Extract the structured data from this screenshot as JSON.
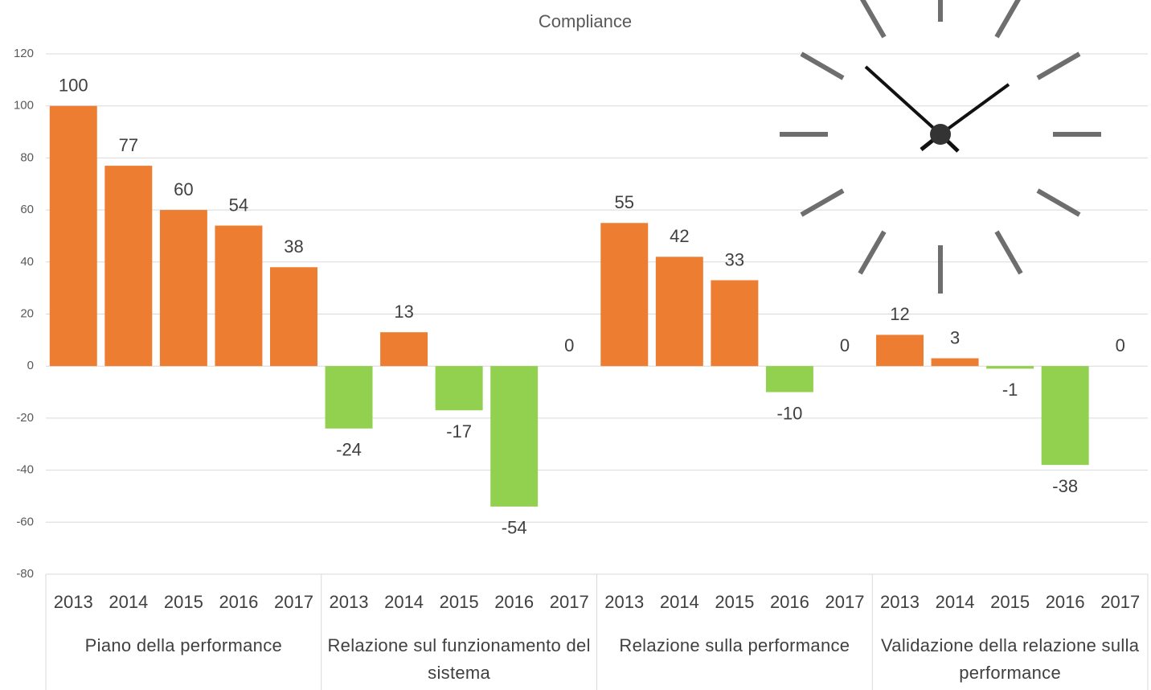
{
  "chart_data": {
    "type": "bar",
    "title": "Compliance",
    "categories": [
      "2013",
      "2014",
      "2015",
      "2016",
      "2017",
      "2013",
      "2014",
      "2015",
      "2016",
      "2017",
      "2013",
      "2014",
      "2015",
      "2016",
      "2017",
      "2013",
      "2014",
      "2015",
      "2016",
      "2017"
    ],
    "groups": [
      "Piano della performance",
      "Relazione sul funzionamento del sistema",
      "Relazione sulla performance",
      "Validazione della relazione sulla performance"
    ],
    "values": [
      100,
      77,
      60,
      54,
      38,
      -24,
      13,
      -17,
      -54,
      0,
      55,
      42,
      33,
      -10,
      0,
      12,
      3,
      -1,
      -38,
      0
    ],
    "positive_color": "#ED7D31",
    "negative_color": "#92D050",
    "ylim": [
      -80,
      120
    ],
    "yticks": [
      -80,
      -60,
      -40,
      -20,
      0,
      20,
      40,
      60,
      80,
      100,
      120
    ],
    "grid": true
  }
}
